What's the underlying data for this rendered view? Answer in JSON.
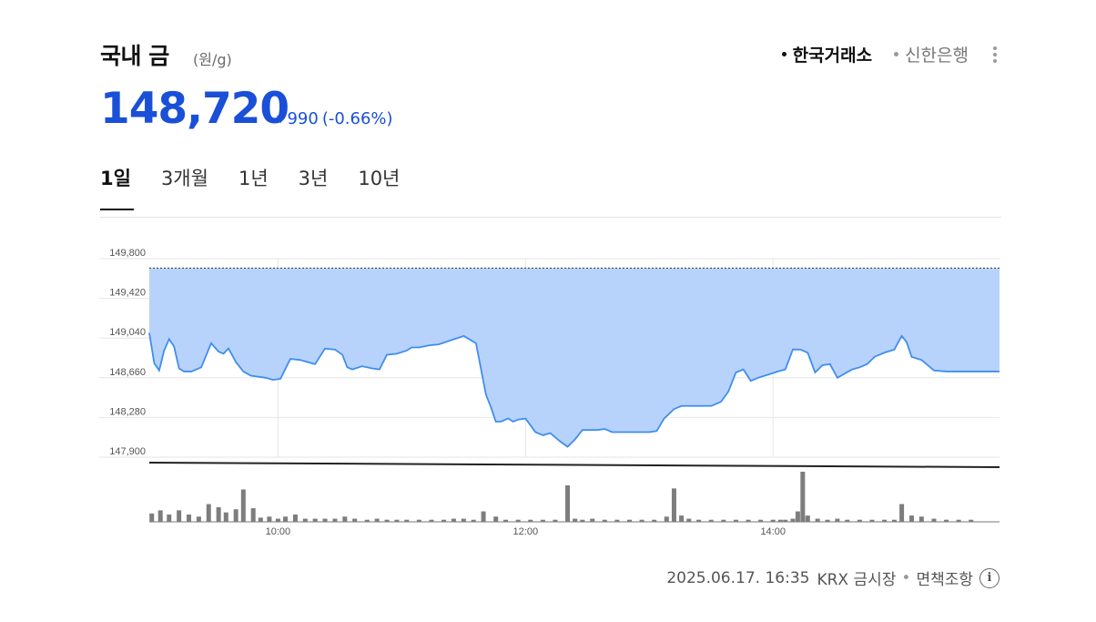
{
  "header": {
    "title": "국내 금",
    "unit": "(원/g)",
    "sources": [
      {
        "label": "한국거래소",
        "active": true
      },
      {
        "label": "신한은행",
        "active": false
      }
    ],
    "more_icon": "more-vertical-icon"
  },
  "price": {
    "value": "148,720",
    "change": "990",
    "change_pct": "(-0.66%)",
    "direction_icon": "down-triangle-icon",
    "color": "#1a4fd8"
  },
  "tabs": [
    {
      "label": "1일",
      "active": true
    },
    {
      "label": "3개월",
      "active": false
    },
    {
      "label": "1년",
      "active": false
    },
    {
      "label": "3년",
      "active": false
    },
    {
      "label": "10년",
      "active": false
    }
  ],
  "chart_data": {
    "type": "area",
    "xlabel": "",
    "ylabel": "",
    "y_ticks": [
      "149,800",
      "149,420",
      "149,040",
      "148,660",
      "148,280",
      "147,900"
    ],
    "y_tick_values": [
      149800,
      149420,
      149040,
      148660,
      148280,
      147900
    ],
    "ylim": [
      147900,
      149800
    ],
    "x_ticks": [
      "10:00",
      "12:00",
      "14:00"
    ],
    "x_tick_values": [
      10.0,
      12.0,
      14.0
    ],
    "xlim": [
      8.96,
      15.83
    ],
    "reference_value": 149710,
    "grid": true,
    "fill_color": "#b7d3fb",
    "line_color": "#3f8ef0",
    "series": [
      {
        "x": [
          8.96,
          9.0,
          9.04,
          9.08,
          9.12,
          9.16,
          9.2,
          9.24,
          9.3,
          9.38,
          9.46,
          9.52,
          9.56,
          9.6,
          9.66,
          9.72,
          9.78,
          9.84,
          9.9,
          9.96,
          10.02,
          10.1,
          10.18,
          10.24,
          10.3,
          10.38,
          10.46,
          10.52,
          10.56,
          10.6,
          10.68,
          10.76,
          10.82,
          10.88,
          10.96,
          11.04,
          11.08,
          11.14,
          11.22,
          11.3,
          11.4,
          11.5,
          11.6,
          11.68,
          11.72,
          11.76,
          11.8,
          11.86,
          11.9,
          11.94,
          12.0,
          12.08,
          12.14,
          12.2,
          12.28,
          12.34,
          12.4,
          12.46,
          12.52,
          12.58,
          12.64,
          12.7,
          12.8,
          12.9,
          13.0,
          13.06,
          13.12,
          13.2,
          13.26,
          13.34,
          13.42,
          13.5,
          13.58,
          13.64,
          13.7,
          13.76,
          13.82,
          13.88,
          13.96,
          14.04,
          14.1,
          14.16,
          14.22,
          14.28,
          14.34,
          14.4,
          14.46,
          14.52,
          14.58,
          14.64,
          14.7,
          14.76,
          14.82,
          14.9,
          14.98,
          15.04,
          15.08,
          15.12,
          15.2,
          15.3,
          15.4,
          15.5,
          15.6,
          15.7,
          15.83
        ],
        "y": [
          149090,
          148800,
          148730,
          148920,
          149030,
          148960,
          148750,
          148720,
          148720,
          148760,
          148990,
          148910,
          148890,
          148940,
          148810,
          148720,
          148680,
          148670,
          148660,
          148640,
          148650,
          148840,
          148830,
          148810,
          148790,
          148940,
          148930,
          148880,
          148760,
          148740,
          148770,
          148750,
          148740,
          148880,
          148890,
          148920,
          148950,
          148950,
          148970,
          148980,
          149020,
          149060,
          148990,
          148500,
          148380,
          148240,
          148240,
          148270,
          148240,
          148260,
          148270,
          148140,
          148110,
          148130,
          148050,
          148000,
          148070,
          148160,
          148160,
          148160,
          148170,
          148140,
          148140,
          148140,
          148140,
          148150,
          148270,
          148360,
          148390,
          148390,
          148390,
          148390,
          148430,
          148530,
          148710,
          148740,
          148630,
          148660,
          148690,
          148720,
          148740,
          148930,
          148930,
          148900,
          148710,
          148780,
          148790,
          148660,
          148700,
          148740,
          148760,
          148790,
          148860,
          148900,
          148930,
          149060,
          149000,
          148860,
          148830,
          148730,
          148720,
          148720,
          148720,
          148720,
          148720
        ]
      }
    ],
    "volume": {
      "x": [
        8.98,
        9.05,
        9.12,
        9.2,
        9.28,
        9.36,
        9.44,
        9.52,
        9.58,
        9.66,
        9.72,
        9.8,
        9.86,
        9.93,
        10.0,
        10.06,
        10.14,
        10.22,
        10.3,
        10.38,
        10.46,
        10.54,
        10.62,
        10.72,
        10.8,
        10.88,
        10.96,
        11.04,
        11.14,
        11.24,
        11.34,
        11.42,
        11.5,
        11.58,
        11.66,
        11.76,
        11.84,
        11.94,
        12.04,
        12.14,
        12.24,
        12.34,
        12.4,
        12.46,
        12.54,
        12.64,
        12.74,
        12.84,
        12.94,
        13.04,
        13.14,
        13.2,
        13.26,
        13.32,
        13.4,
        13.5,
        13.6,
        13.7,
        13.8,
        13.9,
        14.0,
        14.06,
        14.1,
        14.16,
        14.2,
        14.24,
        14.28,
        14.36,
        14.44,
        14.52,
        14.6,
        14.7,
        14.8,
        14.9,
        14.98,
        15.04,
        15.12,
        15.2,
        15.3,
        15.4,
        15.5,
        15.6
      ],
      "y": [
        8,
        11,
        7,
        11,
        7,
        5,
        17,
        14,
        9,
        12,
        31,
        13,
        4,
        5,
        3,
        5,
        7,
        3,
        3,
        3,
        3,
        5,
        3,
        2,
        3,
        2,
        2,
        2,
        2,
        2,
        2,
        3,
        3,
        2,
        10,
        5,
        2,
        2,
        2,
        2,
        2,
        35,
        3,
        2,
        3,
        2,
        2,
        2,
        2,
        2,
        5,
        32,
        6,
        3,
        2,
        2,
        2,
        2,
        2,
        2,
        2,
        2,
        2,
        3,
        10,
        48,
        6,
        3,
        2,
        3,
        2,
        2,
        2,
        2,
        2,
        17,
        6,
        5,
        3,
        2,
        2,
        2
      ]
    }
  },
  "footer": {
    "timestamp": "2025.06.17. 16:35",
    "source": "KRX 금시장",
    "separator": "•",
    "disclaimer": "면책조항",
    "info_icon": "info-circle-icon",
    "info_glyph": "i"
  }
}
